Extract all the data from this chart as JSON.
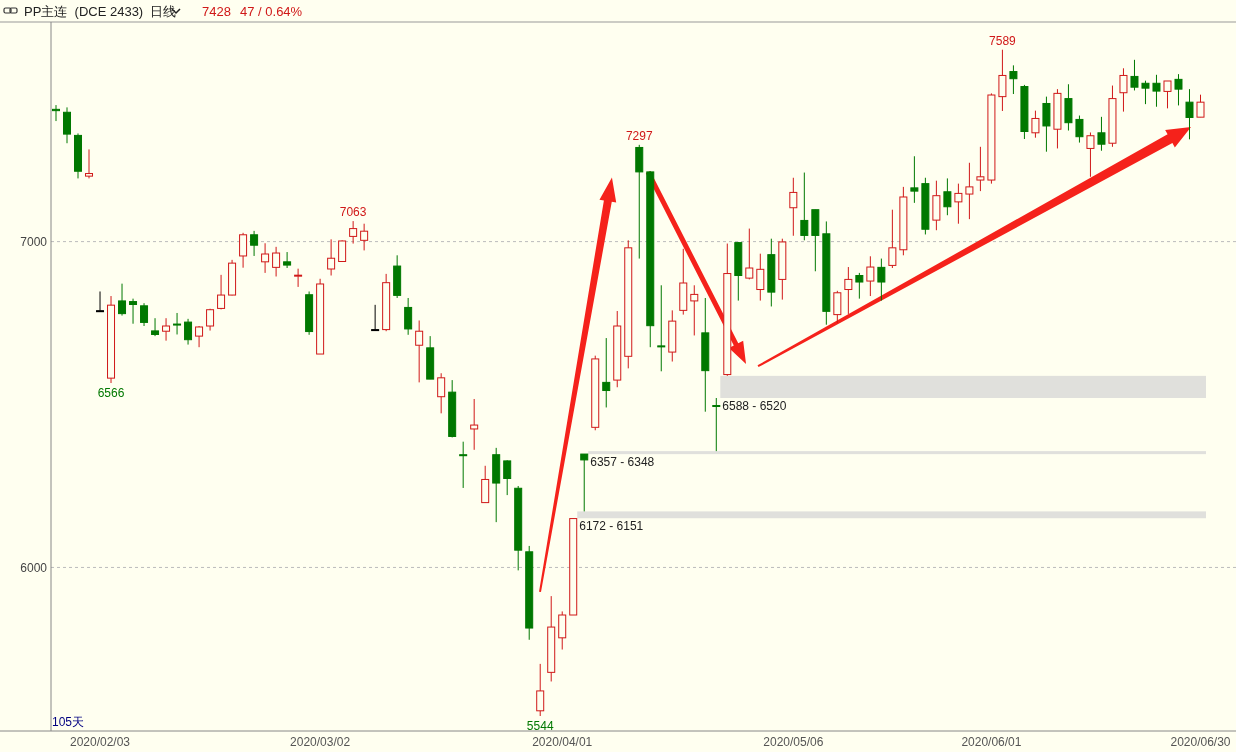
{
  "chart_data": {
    "type": "candlestick",
    "title": "PP主连  (DCE 2433)  日线",
    "annotations": [
      "7428",
      "47 / 0.64%",
      "105天",
      {
        "text": "7589",
        "y": 7589
      },
      {
        "text": "7297",
        "y": 7297
      },
      {
        "text": "7063",
        "y": 7063
      },
      {
        "text": "6566",
        "y": 6566
      },
      {
        "text": "5544",
        "y": 5544
      }
    ],
    "categories": [
      null,
      null,
      null,
      null,
      "2020/02/03",
      null,
      null,
      null,
      null,
      null,
      null,
      null,
      null,
      null,
      null,
      null,
      null,
      null,
      null,
      null,
      null,
      null,
      null,
      null,
      "2020/03/02",
      null,
      null,
      null,
      null,
      null,
      null,
      null,
      null,
      null,
      null,
      null,
      null,
      null,
      null,
      null,
      null,
      null,
      null,
      null,
      null,
      null,
      "2020/04/01",
      null,
      null,
      null,
      null,
      null,
      null,
      null,
      null,
      null,
      null,
      null,
      null,
      null,
      null,
      null,
      null,
      null,
      null,
      null,
      null,
      "2020/05/06",
      null,
      null,
      null,
      null,
      null,
      null,
      null,
      null,
      null,
      null,
      null,
      null,
      null,
      null,
      null,
      null,
      null,
      "2020/06/01",
      null,
      null,
      null,
      null,
      null,
      null,
      null,
      null,
      null,
      null,
      null,
      null,
      null,
      null,
      null,
      null,
      null,
      null,
      "2020/06/30"
    ],
    "ohlc": [
      [
        7406,
        7419,
        7370,
        7402
      ],
      [
        7397,
        7412,
        7302,
        7330
      ],
      [
        7326,
        7332,
        7194,
        7216
      ],
      [
        7201,
        7283,
        7194,
        7209
      ],
      [
        6788,
        6847,
        6788,
        6788
      ],
      [
        6581,
        6833,
        6566,
        6805
      ],
      [
        6818,
        6871,
        6773,
        6779
      ],
      [
        6816,
        6825,
        6748,
        6807
      ],
      [
        6803,
        6811,
        6741,
        6752
      ],
      [
        6726,
        6765,
        6710,
        6715
      ],
      [
        6725,
        6765,
        6696,
        6741
      ],
      [
        6747,
        6781,
        6715,
        6744
      ],
      [
        6753,
        6763,
        6684,
        6699
      ],
      [
        6710,
        6741,
        6676,
        6738
      ],
      [
        6741,
        6794,
        6727,
        6791
      ],
      [
        6795,
        6898,
        6792,
        6836
      ],
      [
        6836,
        6944,
        6835,
        6934
      ],
      [
        6956,
        7027,
        6920,
        7021
      ],
      [
        7021,
        7033,
        6956,
        6989
      ],
      [
        6938,
        6995,
        6904,
        6962
      ],
      [
        6921,
        6984,
        6893,
        6965
      ],
      [
        6938,
        6968,
        6919,
        6928
      ],
      [
        6895,
        6917,
        6861,
        6897
      ],
      [
        6837,
        6847,
        6714,
        6724
      ],
      [
        6655,
        6886,
        6655,
        6870
      ],
      [
        6916,
        7007,
        6896,
        6949
      ],
      [
        6939,
        7004,
        6938,
        7002
      ],
      [
        7016,
        7063,
        6994,
        7040
      ],
      [
        7004,
        7055,
        6973,
        7032
      ],
      [
        6730,
        6806,
        6730,
        6730
      ],
      [
        6730,
        6901,
        6725,
        6874
      ],
      [
        6925,
        6958,
        6827,
        6835
      ],
      [
        6798,
        6827,
        6714,
        6732
      ],
      [
        6682,
        6758,
        6568,
        6725
      ],
      [
        6674,
        6710,
        6578,
        6578
      ],
      [
        6524,
        6596,
        6473,
        6582
      ],
      [
        6538,
        6575,
        6399,
        6402
      ],
      [
        6346,
        6386,
        6244,
        6343
      ],
      [
        6425,
        6517,
        6361,
        6437
      ],
      [
        6199,
        6312,
        6199,
        6270
      ],
      [
        6346,
        6367,
        6139,
        6259
      ],
      [
        6327,
        6329,
        6222,
        6273
      ],
      [
        6243,
        6250,
        5991,
        6053
      ],
      [
        6048,
        6066,
        5778,
        5814
      ],
      [
        5560,
        5704,
        5544,
        5621
      ],
      [
        5678,
        5912,
        5650,
        5817
      ],
      [
        5784,
        5865,
        5748,
        5854
      ],
      [
        5854,
        6151,
        5854,
        6150
      ],
      [
        6348,
        6348,
        6172,
        6330
      ],
      [
        6430,
        6650,
        6421,
        6640
      ],
      [
        6568,
        6704,
        6491,
        6543
      ],
      [
        6575,
        6787,
        6553,
        6741
      ],
      [
        6648,
        7004,
        6611,
        6981
      ],
      [
        7289,
        7297,
        6948,
        7214
      ],
      [
        7214,
        7216,
        6676,
        6742
      ],
      [
        6680,
        6866,
        6602,
        6677
      ],
      [
        6661,
        6789,
        6632,
        6756
      ],
      [
        6789,
        6978,
        6776,
        6873
      ],
      [
        6818,
        6866,
        6712,
        6838
      ],
      [
        6720,
        6827,
        6478,
        6604
      ],
      [
        6497,
        6520,
        6357,
        6494
      ],
      [
        6592,
        6994,
        6588,
        6902
      ],
      [
        6997,
        6999,
        6819,
        6896
      ],
      [
        6888,
        7040,
        6884,
        6919
      ],
      [
        6853,
        6963,
        6819,
        6915
      ],
      [
        6960,
        7009,
        6801,
        6845
      ],
      [
        6884,
        7009,
        6822,
        6999
      ],
      [
        7104,
        7196,
        7018,
        7151
      ],
      [
        7065,
        7212,
        7004,
        7019
      ],
      [
        7098,
        7098,
        6909,
        7019
      ],
      [
        7024,
        7062,
        6745,
        6786
      ],
      [
        6776,
        6849,
        6750,
        6843
      ],
      [
        6853,
        6922,
        6778,
        6884
      ],
      [
        6896,
        6904,
        6825,
        6876
      ],
      [
        6879,
        6955,
        6833,
        6922
      ],
      [
        6921,
        6948,
        6819,
        6876
      ],
      [
        6927,
        7098,
        6919,
        6981
      ],
      [
        6975,
        7168,
        6958,
        7137
      ],
      [
        7165,
        7262,
        7119,
        7155
      ],
      [
        7178,
        7196,
        7022,
        7038
      ],
      [
        7066,
        7187,
        7035,
        7141
      ],
      [
        7153,
        7194,
        7081,
        7107
      ],
      [
        7122,
        7178,
        7055,
        7148
      ],
      [
        7146,
        7242,
        7069,
        7168
      ],
      [
        7189,
        7291,
        7155,
        7199
      ],
      [
        7189,
        7455,
        7178,
        7450
      ],
      [
        7445,
        7589,
        7401,
        7510
      ],
      [
        7522,
        7541,
        7453,
        7500
      ],
      [
        7476,
        7481,
        7315,
        7338
      ],
      [
        7334,
        7402,
        7319,
        7378
      ],
      [
        7424,
        7445,
        7276,
        7355
      ],
      [
        7345,
        7468,
        7286,
        7455
      ],
      [
        7439,
        7483,
        7341,
        7365
      ],
      [
        7375,
        7387,
        7304,
        7322
      ],
      [
        7286,
        7335,
        7199,
        7325
      ],
      [
        7334,
        7383,
        7279,
        7299
      ],
      [
        7302,
        7479,
        7291,
        7439
      ],
      [
        7457,
        7532,
        7399,
        7510
      ],
      [
        7507,
        7558,
        7464,
        7474
      ],
      [
        7486,
        7494,
        7422,
        7471
      ],
      [
        7486,
        7512,
        7414,
        7462
      ],
      [
        7461,
        7493,
        7409,
        7493
      ],
      [
        7498,
        7514,
        7418,
        7468
      ],
      [
        7428,
        7468,
        7314,
        7381
      ],
      [
        7382,
        7451,
        7382,
        7428
      ]
    ],
    "colors": [
      "#007800",
      "#007800",
      "#007800",
      "#d01818",
      "#000000",
      "#d01818",
      "#007800",
      "#007800",
      "#007800",
      "#007800",
      "#d01818",
      "#007800",
      "#007800",
      "#d01818",
      "#d01818",
      "#d01818",
      "#d01818",
      "#d01818",
      "#007800",
      "#d01818",
      "#d01818",
      "#007800",
      "#d01818",
      "#007800",
      "#d01818",
      "#d01818",
      "#d01818",
      "#d01818",
      "#d01818",
      "#000000",
      "#d01818",
      "#007800",
      "#007800",
      "#d01818",
      "#007800",
      "#d01818",
      "#007800",
      "#007800",
      "#d01818",
      "#d01818",
      "#007800",
      "#007800",
      "#007800",
      "#007800",
      "#d01818",
      "#d01818",
      "#d01818",
      "#d01818",
      "#007800",
      "#d01818",
      "#007800",
      "#d01818",
      "#d01818",
      "#007800",
      "#007800",
      "#007800",
      "#d01818",
      "#d01818",
      "#d01818",
      "#007800",
      "#007800",
      "#d01818",
      "#007800",
      "#d01818",
      "#d01818",
      "#007800",
      "#d01818",
      "#d01818",
      "#007800",
      "#007800",
      "#007800",
      "#d01818",
      "#d01818",
      "#007800",
      "#d01818",
      "#007800",
      "#d01818",
      "#d01818",
      "#007800",
      "#007800",
      "#d01818",
      "#007800",
      "#d01818",
      "#d01818",
      "#d01818",
      "#d01818",
      "#d01818",
      "#007800",
      "#007800",
      "#d01818",
      "#007800",
      "#d01818",
      "#007800",
      "#007800",
      "#d01818",
      "#007800",
      "#d01818",
      "#d01818",
      "#007800",
      "#007800",
      "#007800",
      "#d01818",
      "#007800",
      "#007800",
      "#d01818"
    ],
    "ylim": [
      5498,
      7671
    ],
    "yticks": [
      6000,
      7000
    ],
    "grid": "y",
    "bands": [
      {
        "axis": "y",
        "from": 6520,
        "to": 6588,
        "label": "6588 - 6520",
        "color": "#e0e0dc"
      },
      {
        "axis": "y",
        "from": 6348,
        "to": 6357,
        "label": "6357 - 6348",
        "color": "#e0e0dc"
      },
      {
        "axis": "y",
        "from": 6151,
        "to": 6172,
        "label": "6172 - 6151",
        "color": "#e0e0dc"
      }
    ]
  }
}
